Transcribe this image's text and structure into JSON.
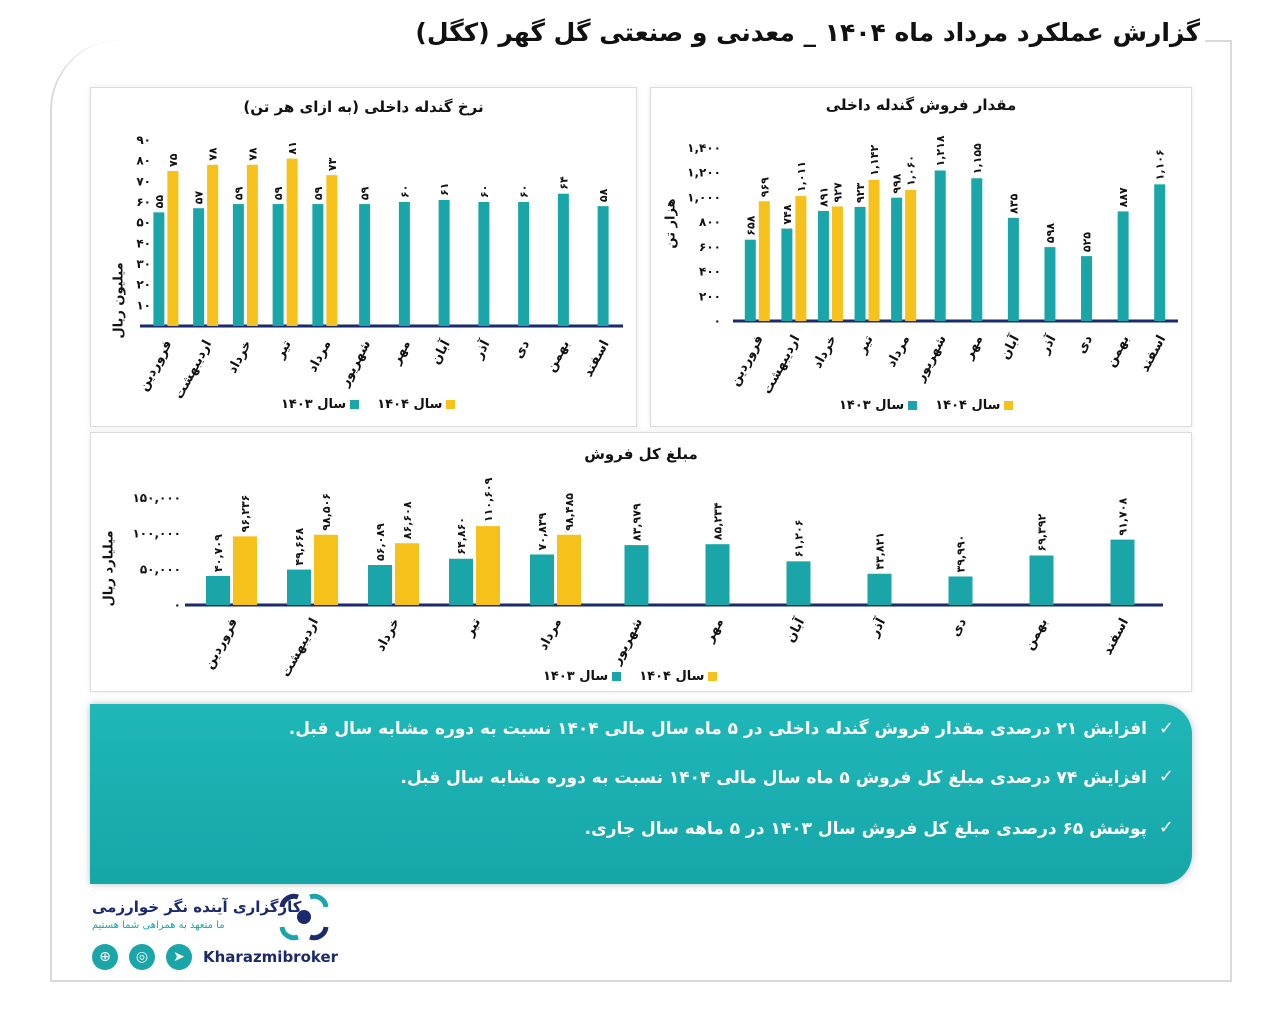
{
  "title": "گزارش عملکرد مرداد ماه ۱۴۰۴ _ معدنی و صنعتی گل گهر (کگل)",
  "colors": {
    "y1403": "#1aa6a8",
    "y1404": "#f7c11b",
    "axis": "#1a2a6c",
    "teal": "#1aa6a8",
    "navy": "#1a2a6c"
  },
  "legend": {
    "y1403": "سال ۱۴۰۳",
    "y1404": "سال ۱۴۰۴"
  },
  "months": [
    "فروردین",
    "اردیبهشت",
    "خرداد",
    "تیر",
    "مرداد",
    "شهریور",
    "مهر",
    "آبان",
    "آذر",
    "دی",
    "بهمن",
    "اسفند"
  ],
  "chart_data": [
    {
      "type": "bar",
      "title": "نرخ گندله داخلی (به ازای هر تن)",
      "ylabel": "میلیون ریال",
      "ylim": [
        0,
        90
      ],
      "yticks": [
        "۰",
        "۱۰",
        "۲۰",
        "۳۰",
        "۴۰",
        "۵۰",
        "۶۰",
        "۷۰",
        "۸۰",
        "۹۰"
      ],
      "series": [
        {
          "name": "سال ۱۴۰۳",
          "values": [
            55,
            57,
            59,
            59,
            59,
            59,
            60,
            61,
            60,
            60,
            64,
            58
          ],
          "labels": [
            "۵۵",
            "۵۷",
            "۵۹",
            "۵۹",
            "۵۹",
            "۵۹",
            "۶۰",
            "۶۱",
            "۶۰",
            "۶۰",
            "۶۴",
            "۵۸"
          ]
        },
        {
          "name": "سال ۱۴۰۴",
          "values": [
            75,
            78,
            78,
            81,
            73
          ],
          "labels": [
            "۷۵",
            "۷۸",
            "۷۸",
            "۸۱",
            "۷۳"
          ]
        }
      ]
    },
    {
      "type": "bar",
      "title": "مقدار فروش گندله داخلی",
      "ylabel": "هزار تن",
      "ylim": [
        0,
        1400
      ],
      "yticks": [
        "۰",
        "۲۰۰",
        "۴۰۰",
        "۶۰۰",
        "۸۰۰",
        "۱,۰۰۰",
        "۱,۲۰۰",
        "۱,۴۰۰"
      ],
      "series": [
        {
          "name": "سال ۱۴۰۳",
          "values": [
            658,
            748,
            891,
            923,
            998,
            1218,
            1155,
            835,
            598,
            525,
            887,
            1106
          ],
          "labels": [
            "۶۵۸",
            "۷۴۸",
            "۸۹۱",
            "۹۲۳",
            "۹۹۸",
            "۱,۲۱۸",
            "۱,۱۵۵",
            "۸۳۵",
            "۵۹۸",
            "۵۲۵",
            "۸۸۷",
            "۱,۱۰۶"
          ]
        },
        {
          "name": "سال ۱۴۰۴",
          "values": [
            969,
            1011,
            927,
            1142,
            1060
          ],
          "labels": [
            "۹۶۹",
            "۱,۰۱۱",
            "۹۲۷",
            "۱,۱۴۲",
            "۱,۰۶۰"
          ]
        }
      ]
    },
    {
      "type": "bar",
      "title": "مبلغ کل فروش",
      "ylabel": "میلیارد ریال",
      "ylim": [
        0,
        150000
      ],
      "yticks": [
        "۰",
        "۵۰,۰۰۰",
        "۱۰۰,۰۰۰",
        "۱۵۰,۰۰۰"
      ],
      "series": [
        {
          "name": "سال ۱۴۰۳",
          "values": [
            40709,
            49668,
            56089,
            64860,
            70839,
            83979,
            85234,
            61206,
            43821,
            39990,
            69392,
            91708
          ],
          "labels": [
            "۴۰,۷۰۹",
            "۴۹,۶۶۸",
            "۵۶,۰۸۹",
            "۶۴,۸۶۰",
            "۷۰,۸۳۹",
            "۸۳,۹۷۹",
            "۸۵,۲۳۴",
            "۶۱,۲۰۶",
            "۴۳,۸۲۱",
            "۳۹,۹۹۰",
            "۶۹,۳۹۲",
            "۹۱,۷۰۸"
          ]
        },
        {
          "name": "سال ۱۴۰۴",
          "values": [
            96236,
            98506,
            86608,
            110609,
            98485
          ],
          "labels": [
            "۹۶,۲۳۶",
            "۹۸,۵۰۶",
            "۸۶,۶۰۸",
            "۱۱۰,۶۰۹",
            "۹۸,۴۸۵"
          ]
        }
      ]
    }
  ],
  "notes": [
    "افزایش ۲۱ درصدی مقدار فروش گندله داخلی در ۵ ماه سال مالی ۱۴۰۴ نسبت به دوره مشابه سال قبل.",
    "افزایش ۷۴ درصدی مبلغ کل فروش ۵ ماه سال مالی ۱۴۰۴ نسبت به دوره مشابه سال قبل.",
    "پوشش ۶۵ درصدی مبلغ کل فروش سال ۱۴۰۳ در ۵ ماهه سال جاری."
  ],
  "check_icon": "✓",
  "footer": {
    "company": "کارگزاری آینده نگر خوارزمی",
    "slogan": "ما متعهد به همراهی شما هستیم",
    "brand": "Kharazmibroker",
    "icons": [
      "telegram-icon",
      "instagram-icon",
      "globe-icon"
    ]
  }
}
